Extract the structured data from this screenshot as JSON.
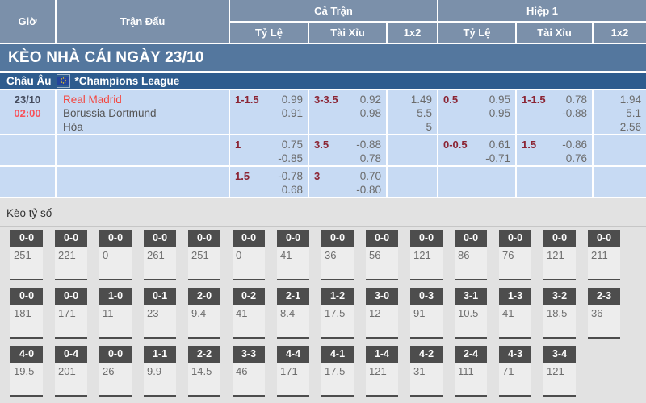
{
  "table": {
    "headers": {
      "time": "Giờ",
      "match": "Trận Đấu",
      "full_match": "Cả Trận",
      "first_half": "Hiệp 1",
      "odds": "Tỷ Lệ",
      "over_under": "Tài Xỉu",
      "one_x_two": "1x2"
    },
    "banner": "KÈO NHÀ CÁI NGÀY 23/10",
    "league": {
      "region": "Châu Âu",
      "flag_icon": "eu-flag-icon",
      "name": "*Champions League"
    },
    "match": {
      "date": "23/10",
      "time": "02:00",
      "home": "Real Madrid",
      "away": "Borussia Dortmund",
      "draw": "Hòa"
    },
    "odds_rows": [
      {
        "ft_handicap": {
          "line": "1-1.5",
          "v1": "0.99",
          "v2": "0.91"
        },
        "ft_ou": {
          "line": "3-3.5",
          "v1": "0.92",
          "v2": "0.98"
        },
        "ft_1x2": {
          "v1": "1.49",
          "v2": "5.5",
          "v3": "5"
        },
        "h1_handicap": {
          "line": "0.5",
          "v1": "0.95",
          "v2": "0.95"
        },
        "h1_ou": {
          "line": "1-1.5",
          "v1": "0.78",
          "v2": "-0.88"
        },
        "h1_1x2": {
          "v1": "1.94",
          "v2": "5.1",
          "v3": "2.56"
        }
      },
      {
        "ft_handicap": {
          "line": "1",
          "v1": "0.75",
          "v2": "-0.85"
        },
        "ft_ou": {
          "line": "3.5",
          "v1": "-0.88",
          "v2": "0.78"
        },
        "h1_handicap": {
          "line": "0-0.5",
          "v1": "0.61",
          "v2": "-0.71"
        },
        "h1_ou": {
          "line": "1.5",
          "v1": "-0.86",
          "v2": "0.76"
        }
      },
      {
        "ft_handicap": {
          "line": "1.5",
          "v1": "-0.78",
          "v2": "0.68"
        },
        "ft_ou": {
          "line": "3",
          "v1": "0.70",
          "v2": "-0.80"
        }
      }
    ]
  },
  "score_section": {
    "title": "Kèo tỷ số",
    "rows": [
      {
        "items": [
          {
            "score": "0-0",
            "odd": "251"
          },
          {
            "score": "0-0",
            "odd": "221"
          },
          {
            "score": "0-0",
            "odd": "0"
          },
          {
            "score": "0-0",
            "odd": "261"
          },
          {
            "score": "0-0",
            "odd": "251"
          },
          {
            "score": "0-0",
            "odd": "0"
          },
          {
            "score": "0-0",
            "odd": "41"
          },
          {
            "score": "0-0",
            "odd": "36"
          },
          {
            "score": "0-0",
            "odd": "56"
          },
          {
            "score": "0-0",
            "odd": "121"
          },
          {
            "score": "0-0",
            "odd": "86"
          },
          {
            "score": "0-0",
            "odd": "76"
          },
          {
            "score": "0-0",
            "odd": "121"
          },
          {
            "score": "0-0",
            "odd": "211"
          }
        ]
      },
      {
        "items": [
          {
            "score": "0-0",
            "odd": "181"
          },
          {
            "score": "0-0",
            "odd": "171"
          },
          {
            "score": "1-0",
            "odd": "11"
          },
          {
            "score": "0-1",
            "odd": "23"
          },
          {
            "score": "2-0",
            "odd": "9.4"
          },
          {
            "score": "0-2",
            "odd": "41"
          },
          {
            "score": "2-1",
            "odd": "8.4"
          },
          {
            "score": "1-2",
            "odd": "17.5"
          },
          {
            "score": "3-0",
            "odd": "12"
          },
          {
            "score": "0-3",
            "odd": "91"
          },
          {
            "score": "3-1",
            "odd": "10.5"
          },
          {
            "score": "1-3",
            "odd": "41"
          },
          {
            "score": "3-2",
            "odd": "18.5"
          },
          {
            "score": "2-3",
            "odd": "36"
          }
        ]
      },
      {
        "items": [
          {
            "score": "4-0",
            "odd": "19.5"
          },
          {
            "score": "0-4",
            "odd": "201"
          },
          {
            "score": "0-0",
            "odd": "26"
          },
          {
            "score": "1-1",
            "odd": "9.9"
          },
          {
            "score": "2-2",
            "odd": "14.5"
          },
          {
            "score": "3-3",
            "odd": "46"
          },
          {
            "score": "4-4",
            "odd": "171"
          },
          {
            "score": "4-1",
            "odd": "17.5"
          },
          {
            "score": "1-4",
            "odd": "121"
          },
          {
            "score": "4-2",
            "odd": "31"
          },
          {
            "score": "2-4",
            "odd": "111"
          },
          {
            "score": "4-3",
            "odd": "71"
          },
          {
            "score": "3-4",
            "odd": "121"
          }
        ]
      }
    ]
  },
  "colors": {
    "header_bg": "#7b90aa",
    "banner_bg": "#54779e",
    "league_bg": "#2e5c8e",
    "row_bg": "#c7daf3",
    "handicap_text": "#8b2433",
    "odds_text": "#6b6b6b",
    "time_red": "#f8515a",
    "team_home_red": "#f4453e",
    "score_box_bg": "#4d4d4d",
    "section_bg": "#e2e2e2"
  }
}
